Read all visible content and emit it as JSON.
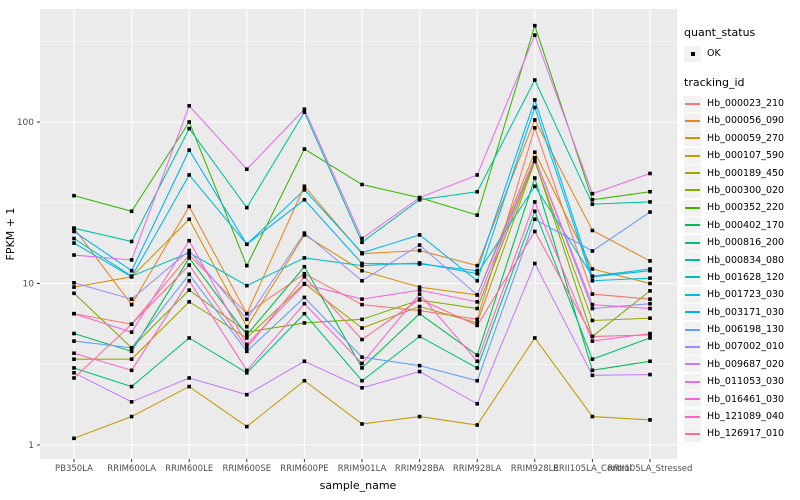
{
  "chart_data": {
    "type": "line",
    "title": "",
    "xlabel": "sample_name",
    "ylabel": "FPKM + 1",
    "y_scale": "log10",
    "ylim": [
      0.82,
      500
    ],
    "y_ticks": [
      1,
      10,
      100
    ],
    "y_tick_labels": [
      "1",
      "10",
      "100"
    ],
    "y_minor_gridlines": [
      3.162,
      31.62,
      316.2
    ],
    "grid": "on",
    "legend_position": "right",
    "panel_bg": "#EBEBEB",
    "grid_color": "#FFFFFF",
    "tick_color": "#333333",
    "axis_text_color": "#4D4D4D",
    "point_color": "#000000",
    "point_shape": "square",
    "categories": [
      "PB350LA",
      "RRIM600LA",
      "RRIM600LE",
      "RRIM600SE",
      "RRIM600PE",
      "RRIM901LA",
      "RRIM928BA",
      "RRIM928LA",
      "RRIM928LE",
      "RRII105LA_Control",
      "RRII105LA_Stressed"
    ],
    "series": [
      {
        "name": "Hb_000023_210",
        "color": "#F8766D",
        "values": [
          6.5,
          5.6,
          15.0,
          6.5,
          11.5,
          7.4,
          6.8,
          6.0,
          92,
          8.6,
          8.0
        ]
      },
      {
        "name": "Hb_000056_090",
        "color": "#E88526",
        "values": [
          22,
          7.4,
          30,
          6.5,
          40,
          15.3,
          16,
          12.9,
          103,
          21.3,
          13.8
        ]
      },
      {
        "name": "Hb_000059_270",
        "color": "#D89000",
        "values": [
          9.5,
          11.0,
          25,
          5.4,
          20.0,
          12.0,
          9.5,
          8.5,
          65,
          12.3,
          10.0
        ]
      },
      {
        "name": "Hb_000107_590",
        "color": "#C49A00",
        "values": [
          1.1,
          1.5,
          2.3,
          1.3,
          2.5,
          1.35,
          1.5,
          1.33,
          4.6,
          1.5,
          1.43
        ]
      },
      {
        "name": "Hb_000189_450",
        "color": "#A3A500",
        "values": [
          3.4,
          3.4,
          7.7,
          4.6,
          10.0,
          5.3,
          7.2,
          5.7,
          57,
          5.9,
          6.1
        ]
      },
      {
        "name": "Hb_000300_020",
        "color": "#7CAE00",
        "values": [
          8.7,
          4.0,
          9.1,
          5.0,
          5.7,
          6.0,
          7.9,
          7.0,
          58,
          4.7,
          9.0
        ]
      },
      {
        "name": "Hb_000352_220",
        "color": "#39B600",
        "values": [
          35,
          28,
          100,
          12.9,
          68,
          41,
          34,
          26.5,
          395,
          33,
          37
        ]
      },
      {
        "name": "Hb_000402_170",
        "color": "#00BB4E",
        "values": [
          4.9,
          3.8,
          14.4,
          4.8,
          12.7,
          3.0,
          6.5,
          3.6,
          45,
          2.9,
          3.3
        ]
      },
      {
        "name": "Hb_000816_200",
        "color": "#00BF7D",
        "values": [
          3.0,
          2.3,
          4.6,
          2.8,
          6.5,
          2.5,
          4.7,
          3.0,
          28,
          3.4,
          4.6
        ]
      },
      {
        "name": "Hb_000834_080",
        "color": "#00C1A3",
        "values": [
          22,
          18.2,
          91,
          29.5,
          115,
          18,
          33,
          37,
          182,
          31,
          32
        ]
      },
      {
        "name": "Hb_001628_120",
        "color": "#00BFC4",
        "values": [
          19,
          11.1,
          15.5,
          9.7,
          14.4,
          12.9,
          13.4,
          11.5,
          40,
          11.1,
          12.3
        ]
      },
      {
        "name": "Hb_001723_030",
        "color": "#00BAE0",
        "values": [
          17.8,
          11.0,
          47,
          17.5,
          38,
          15.5,
          20,
          10.4,
          123,
          10.4,
          10.8
        ]
      },
      {
        "name": "Hb_003171_030",
        "color": "#00B0F6",
        "values": [
          21,
          12.0,
          67,
          17.5,
          33,
          13.3,
          13.2,
          12.0,
          137,
          11.0,
          12.0
        ]
      },
      {
        "name": "Hb_006198_130",
        "color": "#619CFF",
        "values": [
          4.4,
          4.0,
          11.4,
          3.8,
          8.2,
          3.5,
          3.1,
          2.5,
          25,
          15.9,
          27.7
        ]
      },
      {
        "name": "Hb_007002_010",
        "color": "#9590FF",
        "values": [
          10.1,
          8.0,
          16,
          6.0,
          20.5,
          10.4,
          17.3,
          8.5,
          60,
          7.0,
          7.5
        ]
      },
      {
        "name": "Hb_009687_020",
        "color": "#C77CFF",
        "values": [
          2.8,
          1.85,
          2.6,
          2.05,
          3.3,
          2.26,
          2.85,
          1.8,
          13.3,
          2.7,
          2.73
        ]
      },
      {
        "name": "Hb_011053_030",
        "color": "#E76BF3",
        "values": [
          15,
          14.0,
          126,
          51,
          120,
          19,
          34,
          47,
          345,
          36,
          48
        ]
      },
      {
        "name": "Hb_016461_030",
        "color": "#FA62DB",
        "values": [
          6.5,
          5.0,
          18.4,
          4.2,
          9.9,
          8.0,
          9.1,
          7.7,
          60,
          7.4,
          7.0
        ]
      },
      {
        "name": "Hb_121089_040",
        "color": "#FF61CC",
        "values": [
          3.7,
          2.9,
          10.4,
          2.9,
          7.5,
          3.2,
          8.6,
          3.3,
          32,
          4.4,
          4.9
        ]
      },
      {
        "name": "Hb_126917_010",
        "color": "#FF6A98",
        "values": [
          2.6,
          5.6,
          13.0,
          4.0,
          11.0,
          4.5,
          8.0,
          5.5,
          21,
          4.7,
          4.8
        ]
      }
    ]
  },
  "legend": {
    "quant_title": "quant_status",
    "quant_items": [
      {
        "label": "OK",
        "symbol": "black-point"
      }
    ],
    "tracking_title": "tracking_id"
  }
}
